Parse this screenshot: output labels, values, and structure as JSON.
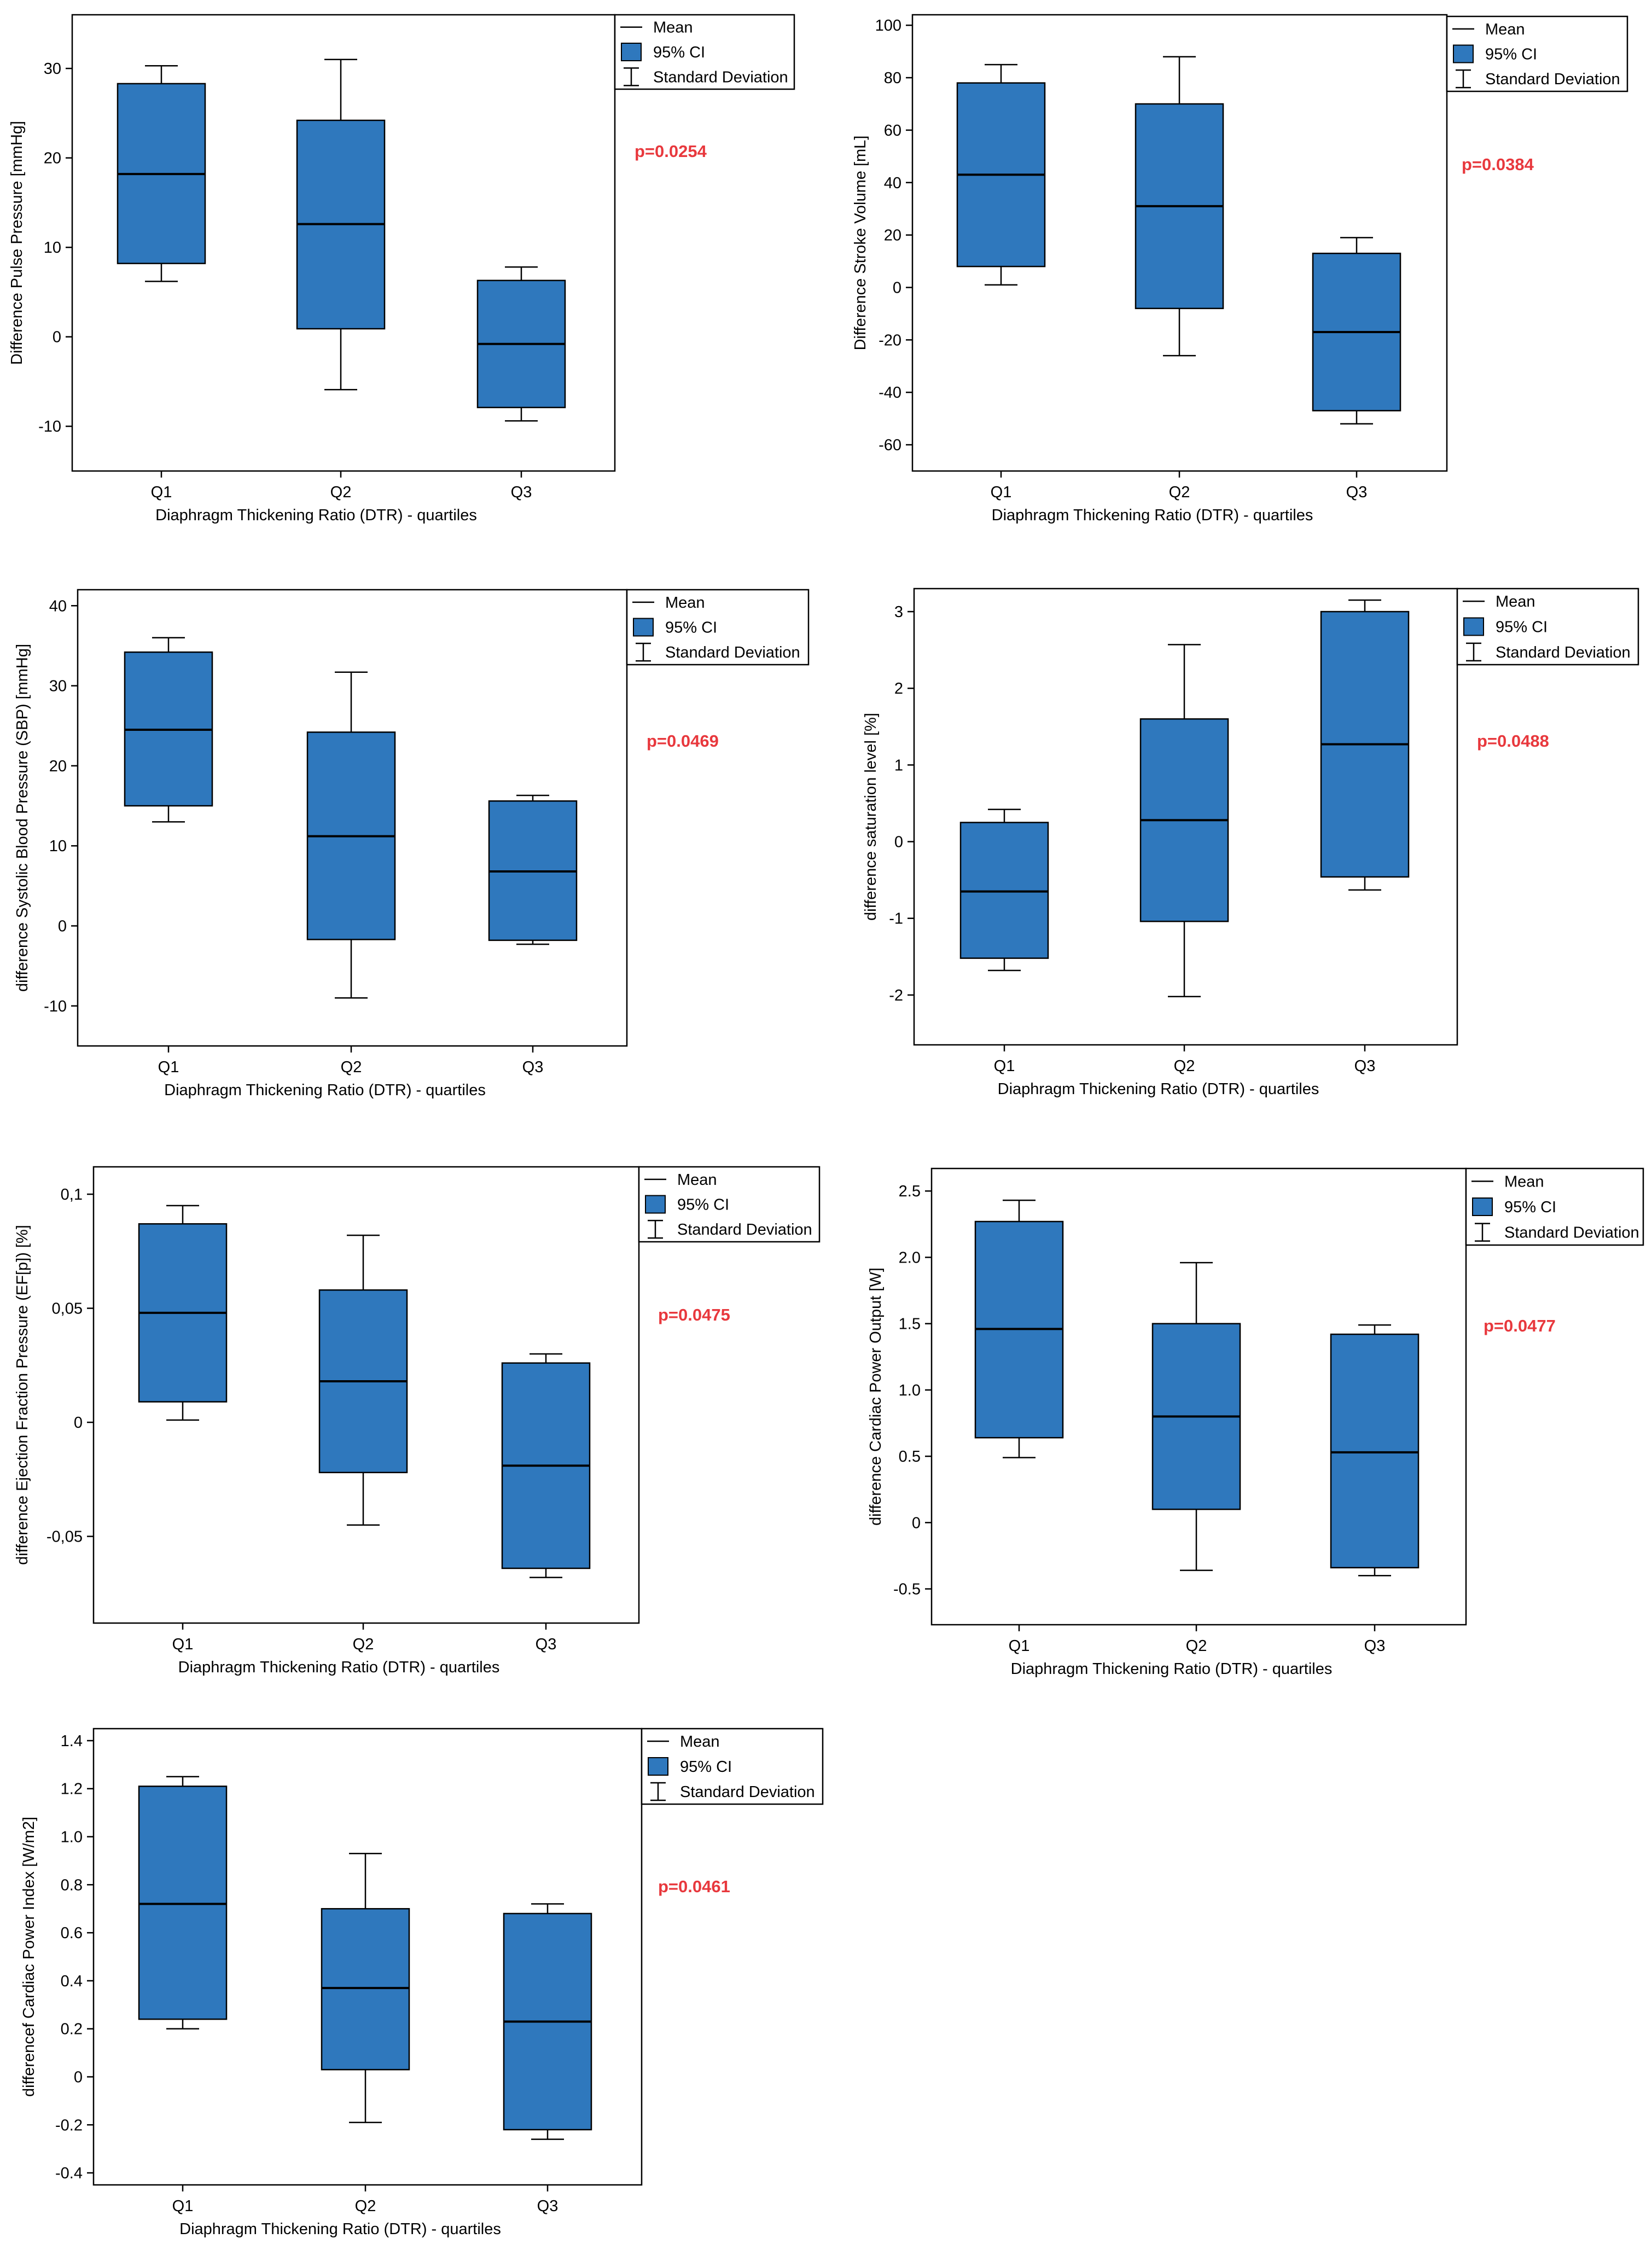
{
  "legend": {
    "mean": "Mean",
    "ci": "95% CI",
    "sd": "Standard Deviation"
  },
  "colors": {
    "box_fill": "#2f78bd",
    "box_stroke": "#000000",
    "pvalue": "#e8383d",
    "frame": "#000000"
  },
  "chart_data": [
    {
      "type": "box",
      "categories": [
        "Q1",
        "Q2",
        "Q3"
      ],
      "xlabel": "Diaphragm Thickening Ratio (DTR) - quartiles",
      "ylabel": "Difference Pulse Pressure [mmHg]",
      "ylim": [
        -15,
        36
      ],
      "yticks": [
        "-10",
        "0",
        "10",
        "20",
        "30"
      ],
      "ytick_values": [
        -10,
        0,
        10,
        20,
        30
      ],
      "annotation": "p=0.0254",
      "boxes": [
        {
          "mean": 18.2,
          "ci_low": 8.2,
          "ci_high": 28.3,
          "sd_low": 6.2,
          "sd_high": 30.3
        },
        {
          "mean": 12.6,
          "ci_low": 0.9,
          "ci_high": 24.2,
          "sd_low": -5.9,
          "sd_high": 31.0
        },
        {
          "mean": -0.8,
          "ci_low": -7.9,
          "ci_high": 6.3,
          "sd_low": -9.4,
          "sd_high": 7.8
        }
      ]
    },
    {
      "type": "box",
      "categories": [
        "Q1",
        "Q2",
        "Q3"
      ],
      "xlabel": "Diaphragm Thickening Ratio (DTR) - quartiles",
      "ylabel": "Difference Stroke Volume [mL]",
      "ylim": [
        -70,
        104
      ],
      "yticks": [
        "-60",
        "-40",
        "-20",
        "0",
        "20",
        "40",
        "60",
        "80",
        "100"
      ],
      "ytick_values": [
        -60,
        -40,
        -20,
        0,
        20,
        40,
        60,
        80,
        100
      ],
      "annotation": "p=0.0384",
      "boxes": [
        {
          "mean": 43,
          "ci_low": 8,
          "ci_high": 78,
          "sd_low": 1,
          "sd_high": 85
        },
        {
          "mean": 31,
          "ci_low": -8,
          "ci_high": 70,
          "sd_low": -26,
          "sd_high": 88
        },
        {
          "mean": -17,
          "ci_low": -47,
          "ci_high": 13,
          "sd_low": -52,
          "sd_high": 19
        }
      ]
    },
    {
      "type": "box",
      "categories": [
        "Q1",
        "Q2",
        "Q3"
      ],
      "xlabel": "Diaphragm Thickening Ratio (DTR) - quartiles",
      "ylabel": "difference Systolic Blood Pressure (SBP) [mmHg]",
      "ylim": [
        -15,
        42
      ],
      "yticks": [
        "-10",
        "0",
        "10",
        "20",
        "30",
        "40"
      ],
      "ytick_values": [
        -10,
        0,
        10,
        20,
        30,
        40
      ],
      "annotation": "p=0.0469",
      "boxes": [
        {
          "mean": 24.5,
          "ci_low": 15.0,
          "ci_high": 34.2,
          "sd_low": 13.0,
          "sd_high": 36.0
        },
        {
          "mean": 11.2,
          "ci_low": -1.7,
          "ci_high": 24.2,
          "sd_low": -9.0,
          "sd_high": 31.7
        },
        {
          "mean": 6.8,
          "ci_low": -1.8,
          "ci_high": 15.6,
          "sd_low": -2.3,
          "sd_high": 16.3
        }
      ]
    },
    {
      "type": "box",
      "categories": [
        "Q1",
        "Q2",
        "Q3"
      ],
      "xlabel": "Diaphragm Thickening Ratio (DTR) - quartiles",
      "ylabel": "difference saturation level [%]",
      "ylim": [
        -2.65,
        3.3
      ],
      "yticks": [
        "-2",
        "-1",
        "0",
        "1",
        "2",
        "3"
      ],
      "ytick_values": [
        -2,
        -1,
        0,
        1,
        2,
        3
      ],
      "annotation": "p=0.0488",
      "boxes": [
        {
          "mean": -0.65,
          "ci_low": -1.52,
          "ci_high": 0.25,
          "sd_low": -1.68,
          "sd_high": 0.42
        },
        {
          "mean": 0.28,
          "ci_low": -1.04,
          "ci_high": 1.6,
          "sd_low": -2.02,
          "sd_high": 2.57
        },
        {
          "mean": 1.27,
          "ci_low": -0.46,
          "ci_high": 3.0,
          "sd_low": -0.63,
          "sd_high": 3.15
        }
      ]
    },
    {
      "type": "box",
      "categories": [
        "Q1",
        "Q2",
        "Q3"
      ],
      "xlabel": "Diaphragm Thickening Ratio (DTR) - quartiles",
      "ylabel": "difference Ejection Fraction Pressure (EF[p]) [%]",
      "ylim": [
        -0.088,
        0.112
      ],
      "yticks": [
        "-0,05",
        "0",
        "0,05",
        "0,1"
      ],
      "ytick_values": [
        -0.05,
        0,
        0.05,
        0.1
      ],
      "annotation": "p=0.0475",
      "boxes": [
        {
          "mean": 0.048,
          "ci_low": 0.009,
          "ci_high": 0.087,
          "sd_low": 0.001,
          "sd_high": 0.095
        },
        {
          "mean": 0.018,
          "ci_low": -0.022,
          "ci_high": 0.058,
          "sd_low": -0.045,
          "sd_high": 0.082
        },
        {
          "mean": -0.019,
          "ci_low": -0.064,
          "ci_high": 0.026,
          "sd_low": -0.068,
          "sd_high": 0.03
        }
      ]
    },
    {
      "type": "box",
      "categories": [
        "Q1",
        "Q2",
        "Q3"
      ],
      "xlabel": "Diaphragm Thickening Ratio (DTR) - quartiles",
      "ylabel": "difference Cardiac Power Output [W]",
      "ylim": [
        -0.77,
        2.67
      ],
      "yticks": [
        "-0.5",
        "0",
        "0.5",
        "1.0",
        "1.5",
        "2.0",
        "2.5"
      ],
      "ytick_values": [
        -0.5,
        0,
        0.5,
        1.0,
        1.5,
        2.0,
        2.5
      ],
      "annotation": "p=0.0477",
      "boxes": [
        {
          "mean": 1.46,
          "ci_low": 0.64,
          "ci_high": 2.27,
          "sd_low": 0.49,
          "sd_high": 2.43
        },
        {
          "mean": 0.8,
          "ci_low": 0.1,
          "ci_high": 1.5,
          "sd_low": -0.36,
          "sd_high": 1.96
        },
        {
          "mean": 0.53,
          "ci_low": -0.34,
          "ci_high": 1.42,
          "sd_low": -0.4,
          "sd_high": 1.49
        }
      ]
    },
    {
      "type": "box",
      "categories": [
        "Q1",
        "Q2",
        "Q3"
      ],
      "xlabel": "Diaphragm Thickening Ratio (DTR) - quartiles",
      "ylabel": "differencef Cardiac Power Index [W/m2]",
      "ylim": [
        -0.45,
        1.45
      ],
      "yticks": [
        "-0.4",
        "-0.2",
        "0",
        "0.2",
        "0.4",
        "0.6",
        "0.8",
        "1.0",
        "1.2",
        "1.4"
      ],
      "ytick_values": [
        -0.4,
        -0.2,
        0,
        0.2,
        0.4,
        0.6,
        0.8,
        1.0,
        1.2,
        1.4
      ],
      "annotation": "p=0.0461",
      "boxes": [
        {
          "mean": 0.72,
          "ci_low": 0.24,
          "ci_high": 1.21,
          "sd_low": 0.2,
          "sd_high": 1.25
        },
        {
          "mean": 0.37,
          "ci_low": 0.03,
          "ci_high": 0.7,
          "sd_low": -0.19,
          "sd_high": 0.93
        },
        {
          "mean": 0.23,
          "ci_low": -0.22,
          "ci_high": 0.68,
          "sd_low": -0.26,
          "sd_high": 0.72
        }
      ]
    }
  ]
}
